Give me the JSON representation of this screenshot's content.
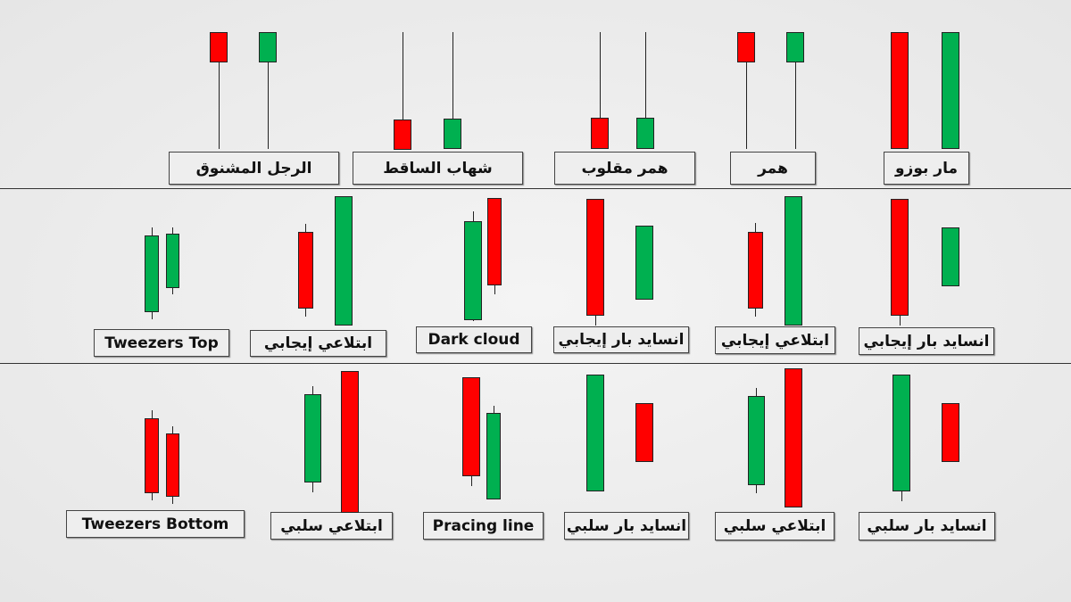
{
  "colors": {
    "bullish": "#00b050",
    "bearish": "#ff0000"
  },
  "rows": [
    {
      "labels": [
        "الرجل المشنوق",
        "شهاب الساقط",
        "همر مقلوب",
        "همر",
        "مار بوزو"
      ]
    },
    {
      "labels": [
        "Tweezers Top",
        "ابتلاعي إيجابي",
        "Dark cloud",
        "انسايد بار إيجابي",
        "ابتلاعي إيجابي",
        "انسايد بار إيجابي"
      ]
    },
    {
      "labels": [
        "Tweezers Bottom",
        "ابتلاعي سلبي",
        "Pracing line",
        "انسايد بار سلبي",
        "ابتلاعي سلبي",
        "انسايد بار سلبي"
      ]
    }
  ]
}
